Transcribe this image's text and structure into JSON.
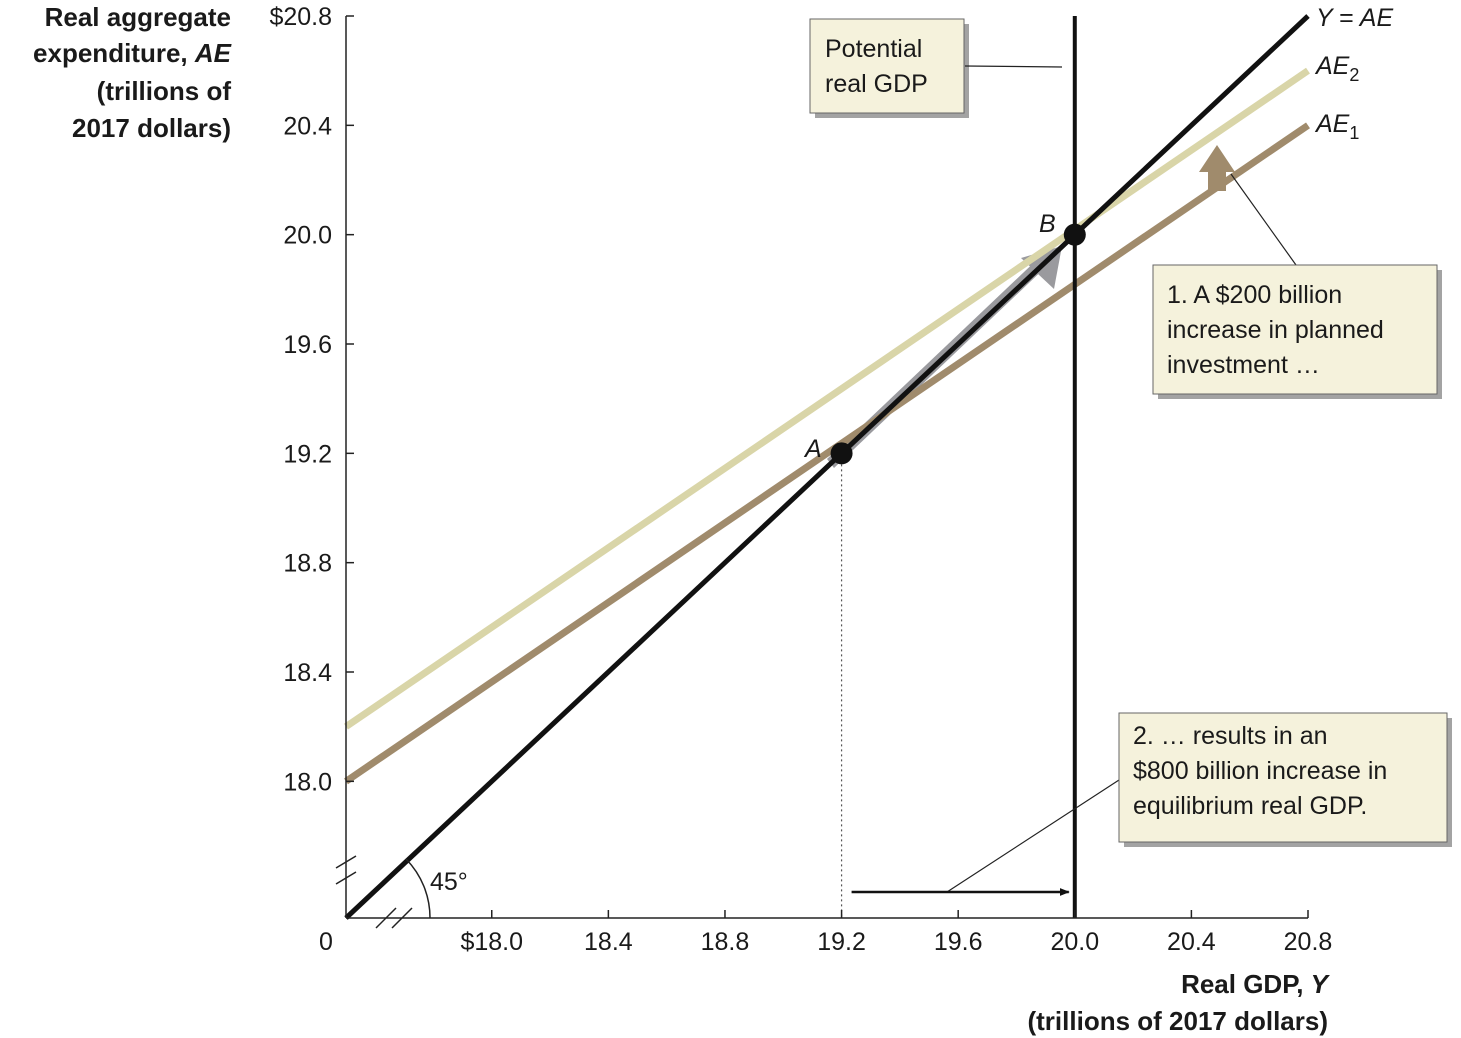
{
  "chart_data": {
    "type": "line",
    "xlabel": [
      "Real GDP, Y",
      "(trillions of 2017 dollars)"
    ],
    "ylabel": [
      "Real aggregate",
      "expenditure, AE",
      "(trillions of",
      "2017 dollars)"
    ],
    "origin_label": "0",
    "xlim": [
      17.5,
      20.8
    ],
    "ylim": [
      17.5,
      20.8
    ],
    "x_ticks": [
      {
        "value": 18.0,
        "label": "$18.0"
      },
      {
        "value": 18.4,
        "label": "18.4"
      },
      {
        "value": 18.8,
        "label": "18.8"
      },
      {
        "value": 19.2,
        "label": "19.2"
      },
      {
        "value": 19.6,
        "label": "19.6"
      },
      {
        "value": 20.0,
        "label": "20.0"
      },
      {
        "value": 20.4,
        "label": "20.4"
      },
      {
        "value": 20.8,
        "label": "20.8"
      }
    ],
    "y_ticks": [
      {
        "value": 18.0,
        "label": "18.0"
      },
      {
        "value": 18.4,
        "label": "18.4"
      },
      {
        "value": 18.8,
        "label": "18.8"
      },
      {
        "value": 19.2,
        "label": "19.2"
      },
      {
        "value": 19.6,
        "label": "19.6"
      },
      {
        "value": 20.0,
        "label": "20.0"
      },
      {
        "value": 20.4,
        "label": "20.4"
      },
      {
        "value": 20.8,
        "label": "$20.8"
      }
    ],
    "series": [
      {
        "name": "Y = AE",
        "color": "#111111",
        "points": [
          [
            17.5,
            17.5
          ],
          [
            20.8,
            20.8
          ]
        ]
      },
      {
        "name": "AE2",
        "color": "#d9d5a8",
        "points": [
          [
            17.5,
            18.2
          ],
          [
            20.8,
            20.6
          ]
        ]
      },
      {
        "name": "AE1",
        "color": "#a08b6c",
        "points": [
          [
            17.5,
            18.0
          ],
          [
            20.8,
            20.4
          ]
        ]
      }
    ],
    "potential_gdp": 20.0,
    "points": [
      {
        "label": "A",
        "x": 19.2,
        "y": 19.2
      },
      {
        "label": "B",
        "x": 20.0,
        "y": 20.0
      }
    ],
    "angle_label": "45°",
    "annotations": {
      "potential_box": [
        "Potential",
        "real GDP"
      ],
      "note1": [
        "1. A $200 billion",
        "increase in planned",
        "investment …"
      ],
      "note2": [
        "2.  … results in an",
        "$800 billion increase in",
        "equilibrium real GDP."
      ]
    },
    "colors": {
      "ae1": "#a08b6c",
      "ae2": "#d9d5a8",
      "box_bg": "#f5f2dc",
      "arrow_gray": "#9a9a9e"
    }
  }
}
